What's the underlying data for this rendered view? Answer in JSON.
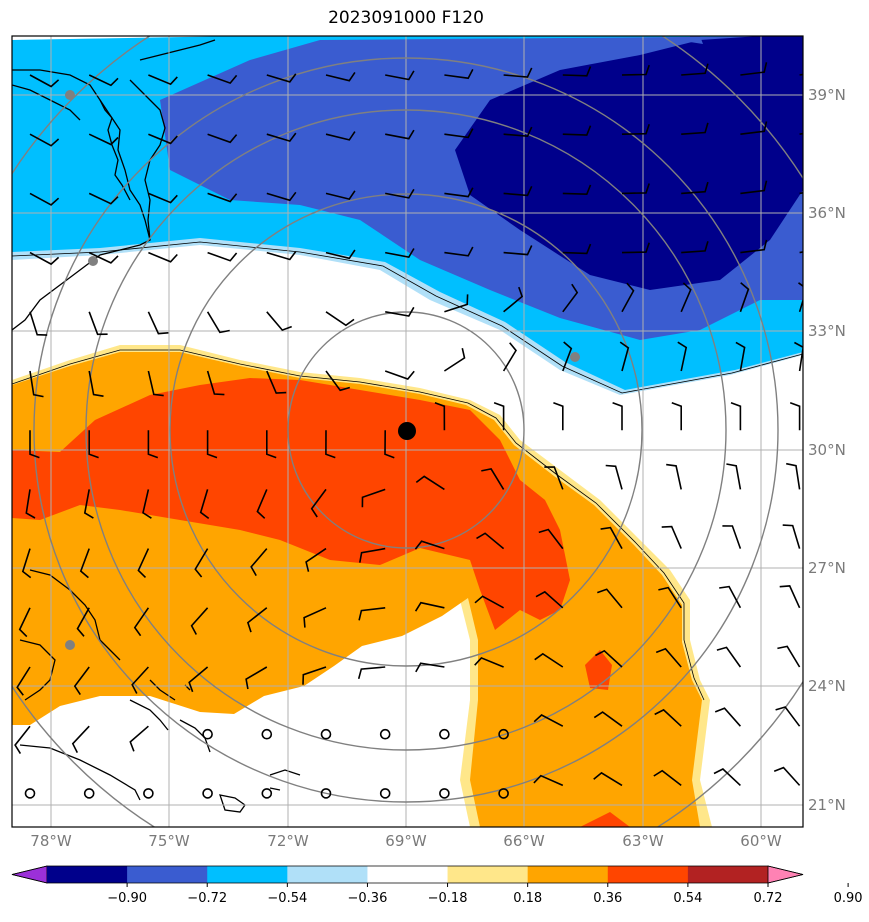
{
  "title": "2023091000 F120",
  "lat_labels": [
    "39°N",
    "36°N",
    "33°N",
    "30°N",
    "27°N",
    "24°N",
    "21°N"
  ],
  "lon_labels": [
    "78°W",
    "75°W",
    "72°W",
    "69°W",
    "66°W",
    "63°W",
    "60°W"
  ],
  "colorbar": {
    "ticks": [
      "−0.90",
      "−0.72",
      "−0.54",
      "−0.36",
      "−0.18",
      "0.18",
      "0.36",
      "0.54",
      "0.72",
      "0.90"
    ],
    "colors": [
      "#9b30d8",
      "#00008b",
      "#3a5cd0",
      "#00bfff",
      "#b0e0f8",
      "#ffffff",
      "#ffe78a",
      "#ffa500",
      "#ff4500",
      "#b22222",
      "#ff82b4"
    ]
  },
  "field_colors": {
    "deep_blue": "#00008b",
    "mid_blue": "#3a5cd0",
    "light_blue": "#00bfff",
    "pale_blue": "#b0e0f8",
    "pale_yellow": "#ffe78a",
    "orange": "#ffa500",
    "red_orange": "#ff4500",
    "land_line": "#000000",
    "grid": "#b0b0b0",
    "rings": "#808080"
  },
  "storm_center": {
    "lon": -68.9,
    "lat": 30.4
  }
}
